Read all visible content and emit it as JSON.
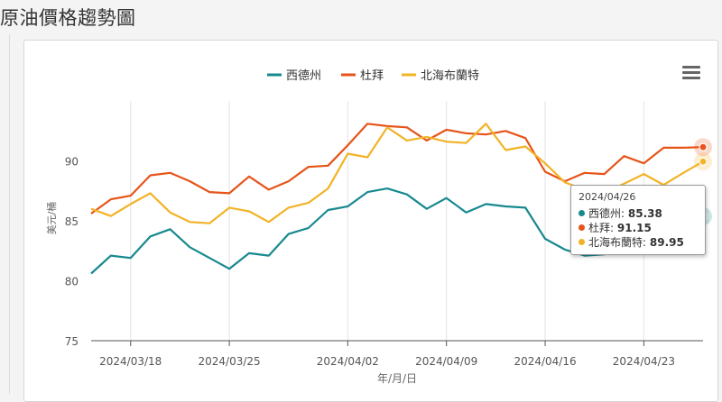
{
  "page": {
    "title": "原油價格趨勢圖"
  },
  "chart_data": {
    "type": "line",
    "xlabel": "年/月/日",
    "ylabel": "美元/桶",
    "ylim": [
      75,
      95
    ],
    "yticks": [
      75,
      80,
      85,
      90
    ],
    "xticks": [
      "2024/03/18",
      "2024/03/25",
      "2024/04/02",
      "2024/04/09",
      "2024/04/16",
      "2024/04/23"
    ],
    "x": [
      "2024/03/14",
      "2024/03/15",
      "2024/03/18",
      "2024/03/19",
      "2024/03/20",
      "2024/03/21",
      "2024/03/22",
      "2024/03/25",
      "2024/03/26",
      "2024/03/27",
      "2024/03/28",
      "2024/03/29",
      "2024/04/01",
      "2024/04/02",
      "2024/04/03",
      "2024/04/04",
      "2024/04/05",
      "2024/04/08",
      "2024/04/09",
      "2024/04/10",
      "2024/04/11",
      "2024/04/12",
      "2024/04/15",
      "2024/04/16",
      "2024/04/17",
      "2024/04/18",
      "2024/04/19",
      "2024/04/22",
      "2024/04/23",
      "2024/04/24",
      "2024/04/25",
      "2024/04/26"
    ],
    "legend_position": "top-center",
    "grid": "vertical",
    "series": [
      {
        "name": "西德州",
        "color": "#17898f",
        "values": [
          80.6,
          82.1,
          81.9,
          83.7,
          84.3,
          82.8,
          81.9,
          81.0,
          82.3,
          82.1,
          83.9,
          84.4,
          85.9,
          86.2,
          87.4,
          87.7,
          87.2,
          86.0,
          86.9,
          85.7,
          86.4,
          86.2,
          86.1,
          83.5,
          82.6,
          82.1,
          82.2,
          82.7,
          83.3,
          84.8,
          84.9,
          85.38
        ]
      },
      {
        "name": "杜拜",
        "color": "#e6541a",
        "values": [
          85.6,
          86.8,
          87.1,
          88.8,
          89.0,
          88.3,
          87.4,
          87.3,
          88.7,
          87.6,
          88.3,
          89.5,
          89.6,
          91.3,
          93.1,
          92.9,
          92.8,
          91.7,
          92.6,
          92.3,
          92.2,
          92.5,
          91.9,
          89.1,
          88.3,
          89.0,
          88.9,
          90.4,
          89.8,
          91.1,
          91.1,
          91.15
        ]
      },
      {
        "name": "北海布蘭特",
        "color": "#f2b327",
        "values": [
          86.0,
          85.4,
          86.4,
          87.3,
          85.7,
          84.9,
          84.8,
          86.1,
          85.8,
          84.9,
          86.1,
          86.5,
          87.7,
          90.6,
          90.3,
          92.8,
          91.7,
          92.0,
          91.6,
          91.5,
          93.1,
          90.9,
          91.2,
          89.8,
          88.2,
          87.6,
          87.3,
          88.1,
          88.9,
          88.0,
          89.0,
          89.95
        ]
      }
    ],
    "tooltip": {
      "date": "2024/04/26",
      "rows": [
        {
          "name": "西德州",
          "value": "85.38",
          "color": "#17898f"
        },
        {
          "name": "杜拜",
          "value": "91.15",
          "color": "#e6541a"
        },
        {
          "name": "北海布蘭特",
          "value": "89.95",
          "color": "#f2b327"
        }
      ]
    }
  },
  "icons": {
    "menu": "hamburger-menu-icon"
  }
}
